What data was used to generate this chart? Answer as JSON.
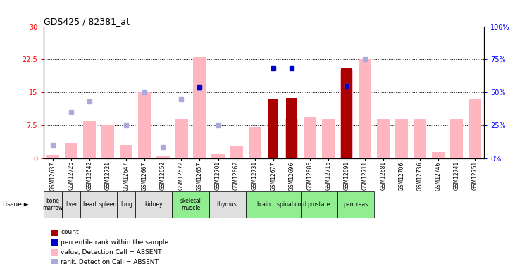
{
  "title": "GDS425 / 82381_at",
  "samples": [
    "GSM12637",
    "GSM12726",
    "GSM12642",
    "GSM12721",
    "GSM12647",
    "GSM12667",
    "GSM12652",
    "GSM12672",
    "GSM12657",
    "GSM12701",
    "GSM12662",
    "GSM12731",
    "GSM12677",
    "GSM12696",
    "GSM12686",
    "GSM12716",
    "GSM12691",
    "GSM12711",
    "GSM12681",
    "GSM12706",
    "GSM12736",
    "GSM12746",
    "GSM12741",
    "GSM12751"
  ],
  "tissue_spans": [
    {
      "label": "bone\nmarrow",
      "start": 0,
      "end": 0,
      "green": false
    },
    {
      "label": "liver",
      "start": 1,
      "end": 1,
      "green": false
    },
    {
      "label": "heart",
      "start": 2,
      "end": 2,
      "green": false
    },
    {
      "label": "spleen",
      "start": 3,
      "end": 3,
      "green": false
    },
    {
      "label": "lung",
      "start": 4,
      "end": 4,
      "green": false
    },
    {
      "label": "kidney",
      "start": 5,
      "end": 6,
      "green": false
    },
    {
      "label": "skeletal\nmuscle",
      "start": 7,
      "end": 8,
      "green": true
    },
    {
      "label": "thymus",
      "start": 9,
      "end": 10,
      "green": false
    },
    {
      "label": "brain",
      "start": 11,
      "end": 12,
      "green": true
    },
    {
      "label": "spinal cord",
      "start": 13,
      "end": 13,
      "green": true
    },
    {
      "label": "prostate",
      "start": 14,
      "end": 15,
      "green": true
    },
    {
      "label": "pancreas",
      "start": 16,
      "end": 17,
      "green": true
    }
  ],
  "value_bars": [
    0.8,
    3.5,
    8.5,
    7.5,
    3.0,
    15.0,
    0.5,
    9.0,
    23.0,
    1.0,
    2.8,
    7.0,
    0.0,
    9.0,
    9.5,
    9.0,
    20.0,
    22.5,
    9.0,
    9.0,
    9.0,
    1.5,
    9.0,
    13.5
  ],
  "rank_dots": [
    3.0,
    10.5,
    13.0,
    null,
    7.5,
    15.0,
    2.5,
    13.5,
    16.0,
    7.5,
    null,
    null,
    null,
    null,
    null,
    null,
    16.5,
    22.5,
    null,
    null,
    null,
    null,
    null,
    null
  ],
  "count_bars": [
    null,
    null,
    null,
    null,
    null,
    null,
    null,
    null,
    null,
    null,
    null,
    null,
    13.5,
    13.8,
    null,
    null,
    20.5,
    null,
    null,
    null,
    null,
    null,
    null,
    null
  ],
  "percentile_dots": [
    null,
    null,
    null,
    null,
    null,
    null,
    null,
    null,
    16.2,
    null,
    null,
    null,
    20.5,
    20.5,
    null,
    null,
    16.5,
    null,
    null,
    null,
    null,
    null,
    null,
    null
  ],
  "ylim_left": [
    0,
    30
  ],
  "ylim_right": [
    0,
    100
  ],
  "yticks_left": [
    0,
    7.5,
    15,
    22.5,
    30
  ],
  "yticks_right": [
    0,
    25,
    50,
    75,
    100
  ],
  "ytick_labels_left": [
    "0",
    "7.5",
    "15",
    "22.5",
    "30"
  ],
  "ytick_labels_right": [
    "0%",
    "25%",
    "50%",
    "75%",
    "100%"
  ],
  "color_value_bar": "#FFB6C1",
  "color_rank_dot": "#AAAADD",
  "color_count_bar": "#AA0000",
  "color_percentile_dot": "#0000CC",
  "tissue_color_white": "#E0E0E0",
  "tissue_color_green": "#90EE90",
  "legend_items": [
    {
      "color": "#AA0000",
      "label": "count"
    },
    {
      "color": "#0000CC",
      "label": "percentile rank within the sample"
    },
    {
      "color": "#FFB6C1",
      "label": "value, Detection Call = ABSENT"
    },
    {
      "color": "#AAAADD",
      "label": "rank, Detection Call = ABSENT"
    }
  ]
}
